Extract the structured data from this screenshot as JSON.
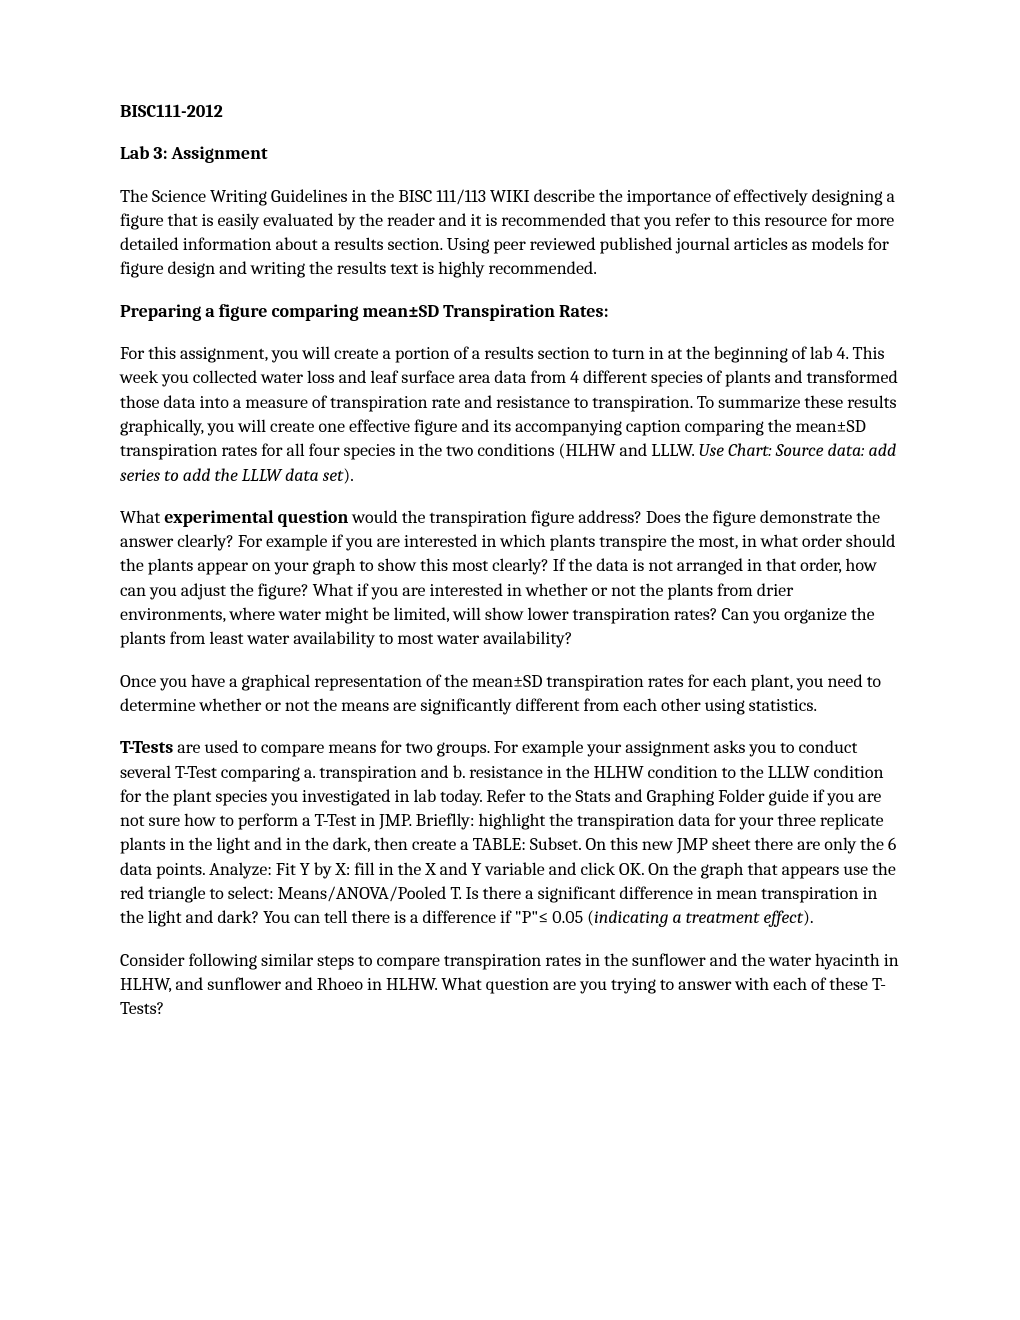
{
  "course": "BISC111-2012",
  "lab_title": "Lab 3:  Assignment",
  "intro": "The Science Writing Guidelines in the BISC 111/113 WIKI describe the importance of effectively designing a figure that is easily evaluated by the reader and it is recommended that you refer to this resource for more detailed information about a results section.  Using peer reviewed published journal articles as models for figure design and writing the results text is highly recommended.",
  "section1_heading": "Preparing a figure comparing mean±SD Transpiration Rates:",
  "para1_part1": "For this assignment, you will create a portion of a results section to turn in at the beginning of lab 4.  This week you collected water loss and leaf surface area data from 4 different species of plants and transformed those data into a measure of transpiration rate and resistance to transpiration.  To summarize these results graphically, you will create one effective figure and its accompanying caption comparing the mean±SD transpiration rates for all four species in the two conditions (HLHW and LLLW.  ",
  "para1_italic": "Use Chart: Source data:  add series to add the LLLW data set",
  "para1_part2": ").",
  "para2_part1": "What ",
  "para2_bold": "experimental question",
  "para2_part2": " would the transpiration figure address?  Does the figure demonstrate the answer clearly?  For example if you are interested in which plants transpire the most, in what order should the plants appear on your graph to show this most clearly?  If the data is not arranged in that order, how can you adjust the figure?  What if you are interested in whether or not the plants from drier environments, where water might be limited, will show lower transpiration rates?  Can you organize the plants from least water availability to most water availability?",
  "para3": "Once you have a graphical representation of the mean±SD transpiration rates for each plant, you need to determine whether or not the means are significantly different from each other using statistics.",
  "para4_bold": "T-Tests",
  "para4_part1": " are used to compare means for two groups.  For example your assignment asks you to conduct several T-Test comparing a. transpiration and b. resistance in the HLHW condition to the LLLW condition for the plant species you investigated in lab today. Refer to the Stats and Graphing Folder guide if you are not sure how to perform a T-Test in JMP.  Brieflly:  highlight the transpiration data for your three replicate plants in the light and in the dark, then create a TABLE: Subset.  On this new JMP sheet there are only the 6 data points.  Analyze:  Fit Y by X:  fill in the X and Y variable and click OK.  On the graph that appears use the red triangle to select: Means/ANOVA/Pooled T.  Is there a significant difference in mean transpiration in the light and dark?  You can tell there is a difference if \"P\"≤ 0.05  (",
  "para4_italic": "indicating a treatment effect",
  "para4_part2": ").",
  "para5": "Consider following similar steps to compare transpiration rates in the sunflower and the water hyacinth in HLHW, and sunflower and Rhoeo in HLHW.   What question are you trying to answer with each of these T-Tests?"
}
